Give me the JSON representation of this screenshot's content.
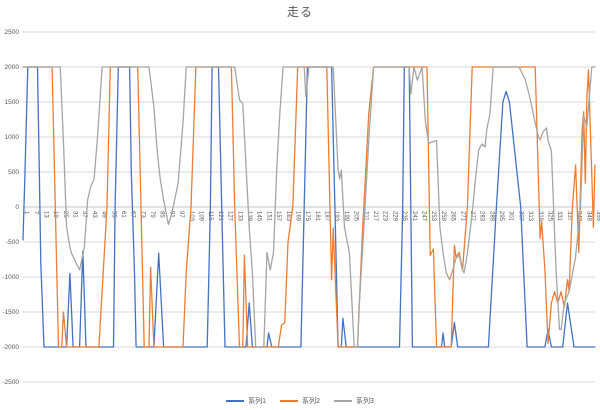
{
  "page": {
    "background": "#ffffff"
  },
  "chart_data": {
    "type": "line",
    "title": "走る",
    "grid": true,
    "legend_position": "bottom",
    "ylim": [
      -2500,
      2500
    ],
    "x_range": [
      1,
      355
    ],
    "y_ticks": [
      2500,
      2000,
      1500,
      1000,
      500,
      0,
      -500,
      -1000,
      -1500,
      -2000,
      -2500
    ],
    "x_tick_labels": [
      1,
      7,
      13,
      19,
      25,
      31,
      37,
      43,
      49,
      55,
      61,
      67,
      73,
      79,
      85,
      91,
      97,
      103,
      109,
      115,
      121,
      127,
      133,
      139,
      145,
      151,
      157,
      163,
      169,
      175,
      181,
      187,
      193,
      199,
      205,
      211,
      217,
      223,
      229,
      235,
      241,
      247,
      253,
      259,
      265,
      271,
      277,
      283,
      289,
      295,
      301,
      307,
      313,
      319,
      325,
      331,
      337,
      343,
      349,
      355
    ],
    "axis_text_color": "#595959",
    "gridline_color": "#d9d9d9",
    "zero_axis_color": "#c6c6c6",
    "series": [
      {
        "name": "系列1",
        "color": "#4472c4",
        "points": [
          [
            1,
            -470
          ],
          [
            2,
            300
          ],
          [
            4,
            2000
          ],
          [
            10,
            2000
          ],
          [
            11,
            600
          ],
          [
            12,
            -800
          ],
          [
            14,
            -2000
          ],
          [
            28,
            -2000
          ],
          [
            30,
            -950
          ],
          [
            32,
            -2000
          ],
          [
            36,
            -2000
          ],
          [
            38,
            -630
          ],
          [
            40,
            -2000
          ],
          [
            57,
            -2000
          ],
          [
            58,
            0
          ],
          [
            60,
            2000
          ],
          [
            67,
            2000
          ],
          [
            68,
            500
          ],
          [
            70,
            -950
          ],
          [
            71,
            -2000
          ],
          [
            82,
            -2000
          ],
          [
            85,
            -660
          ],
          [
            88,
            -2000
          ],
          [
            115,
            -2000
          ],
          [
            117,
            0
          ],
          [
            118,
            2000
          ],
          [
            122,
            2000
          ],
          [
            124,
            0
          ],
          [
            126,
            -2000
          ],
          [
            139,
            -2000
          ],
          [
            141,
            -1370
          ],
          [
            143,
            -2000
          ],
          [
            152,
            -2000
          ],
          [
            153,
            -1800
          ],
          [
            155,
            -2000
          ],
          [
            173,
            -2000
          ],
          [
            175,
            0
          ],
          [
            177,
            2000
          ],
          [
            192,
            2000
          ],
          [
            194,
            0
          ],
          [
            196,
            -2000
          ],
          [
            198,
            -2000
          ],
          [
            199,
            -1590
          ],
          [
            201,
            -2000
          ],
          [
            234,
            -2000
          ],
          [
            236,
            0
          ],
          [
            237,
            2000
          ],
          [
            240,
            2000
          ],
          [
            241,
            0
          ],
          [
            242,
            -2000
          ],
          [
            260,
            -2000
          ],
          [
            261,
            -1800
          ],
          [
            262,
            -2000
          ],
          [
            266,
            -2000
          ],
          [
            268,
            -1650
          ],
          [
            270,
            -2000
          ],
          [
            289,
            -2000
          ],
          [
            294,
            0
          ],
          [
            298,
            1500
          ],
          [
            300,
            1650
          ],
          [
            302,
            1500
          ],
          [
            309,
            0
          ],
          [
            313,
            -2000
          ],
          [
            324,
            -2000
          ],
          [
            326,
            -1750
          ],
          [
            328,
            -2000
          ],
          [
            335,
            -2000
          ],
          [
            338,
            -1370
          ],
          [
            342,
            -2000
          ],
          [
            355,
            -2000
          ]
        ]
      },
      {
        "name": "系列2",
        "color": "#ed7d31",
        "points": [
          [
            1,
            2000
          ],
          [
            19,
            2000
          ],
          [
            21,
            0
          ],
          [
            23,
            -2000
          ],
          [
            25,
            -2000
          ],
          [
            26,
            -1500
          ],
          [
            28,
            -2000
          ],
          [
            48,
            -2000
          ],
          [
            53,
            0
          ],
          [
            55,
            2000
          ],
          [
            72,
            2000
          ],
          [
            74,
            0
          ],
          [
            76,
            -2000
          ],
          [
            79,
            -2000
          ],
          [
            80,
            -860
          ],
          [
            82,
            -2000
          ],
          [
            100,
            -2000
          ],
          [
            102,
            -940
          ],
          [
            105,
            0
          ],
          [
            108,
            2000
          ],
          [
            130,
            2000
          ],
          [
            132,
            0
          ],
          [
            135,
            -2000
          ],
          [
            137,
            -2000
          ],
          [
            138,
            -690
          ],
          [
            140,
            -2000
          ],
          [
            159,
            -2000
          ],
          [
            161,
            -1690
          ],
          [
            163,
            -1650
          ],
          [
            165,
            -500
          ],
          [
            168,
            0
          ],
          [
            171,
            2000
          ],
          [
            189,
            2000
          ],
          [
            192,
            -1040
          ],
          [
            193,
            -300
          ],
          [
            196,
            -2000
          ],
          [
            208,
            -2000
          ],
          [
            211,
            -400
          ],
          [
            215,
            1340
          ],
          [
            218,
            2000
          ],
          [
            251,
            2000
          ],
          [
            253,
            -690
          ],
          [
            255,
            -600
          ],
          [
            257,
            -2000
          ],
          [
            266,
            -2000
          ],
          [
            268,
            -550
          ],
          [
            269,
            -714
          ],
          [
            271,
            -650
          ],
          [
            273,
            -900
          ],
          [
            276,
            0
          ],
          [
            279,
            2000
          ],
          [
            318,
            2000
          ],
          [
            321,
            -450
          ],
          [
            322,
            -210
          ],
          [
            324,
            -900
          ],
          [
            326,
            -1950
          ],
          [
            328,
            -1370
          ],
          [
            330,
            -1210
          ],
          [
            332,
            -1370
          ],
          [
            334,
            -1210
          ],
          [
            336,
            -1430
          ],
          [
            338,
            -1040
          ],
          [
            339,
            -1200
          ],
          [
            341,
            0
          ],
          [
            343,
            600
          ],
          [
            345,
            -650
          ],
          [
            347,
            1100
          ],
          [
            348,
            1360
          ],
          [
            349,
            340
          ],
          [
            350,
            1570
          ],
          [
            351,
            1960
          ],
          [
            354,
            -290
          ],
          [
            355,
            600
          ]
        ]
      },
      {
        "name": "系列3",
        "color": "#a5a5a5",
        "points": [
          [
            1,
            2000
          ],
          [
            24,
            2000
          ],
          [
            26,
            950
          ],
          [
            28,
            -290
          ],
          [
            30,
            -570
          ],
          [
            31,
            -660
          ],
          [
            33,
            -760
          ],
          [
            36,
            -900
          ],
          [
            39,
            -570
          ],
          [
            41,
            100
          ],
          [
            43,
            300
          ],
          [
            45,
            400
          ],
          [
            47,
            960
          ],
          [
            50,
            2000
          ],
          [
            79,
            2000
          ],
          [
            82,
            1430
          ],
          [
            84,
            815
          ],
          [
            86,
            390
          ],
          [
            88,
            100
          ],
          [
            91,
            -250
          ],
          [
            93,
            -100
          ],
          [
            97,
            340
          ],
          [
            100,
            1200
          ],
          [
            102,
            2000
          ],
          [
            132,
            2000
          ],
          [
            135,
            1530
          ],
          [
            137,
            1480
          ],
          [
            141,
            -290
          ],
          [
            143,
            -940
          ],
          [
            145,
            -2000
          ],
          [
            150,
            -2000
          ],
          [
            152,
            -650
          ],
          [
            154,
            -900
          ],
          [
            156,
            -650
          ],
          [
            158,
            530
          ],
          [
            160,
            1360
          ],
          [
            162,
            2000
          ],
          [
            175,
            2000
          ],
          [
            176,
            1580
          ],
          [
            178,
            2000
          ],
          [
            193,
            2000
          ],
          [
            196,
            530
          ],
          [
            197,
            400
          ],
          [
            198,
            530
          ],
          [
            200,
            -290
          ],
          [
            203,
            -660
          ],
          [
            206,
            -2000
          ],
          [
            208,
            -2000
          ],
          [
            209,
            -1430
          ],
          [
            212,
            -290
          ],
          [
            215,
            960
          ],
          [
            218,
            2000
          ],
          [
            240,
            2000
          ],
          [
            241,
            1610
          ],
          [
            243,
            2000
          ],
          [
            245,
            1810
          ],
          [
            248,
            2000
          ],
          [
            250,
            1240
          ],
          [
            252,
            910
          ],
          [
            257,
            950
          ],
          [
            259,
            -290
          ],
          [
            261,
            -660
          ],
          [
            263,
            -940
          ],
          [
            265,
            -1040
          ],
          [
            267,
            -900
          ],
          [
            269,
            -730
          ],
          [
            271,
            -690
          ],
          [
            273,
            -900
          ],
          [
            274,
            -940
          ],
          [
            276,
            -660
          ],
          [
            279,
            -90
          ],
          [
            281,
            390
          ],
          [
            283,
            815
          ],
          [
            285,
            900
          ],
          [
            287,
            860
          ],
          [
            288,
            1100
          ],
          [
            290,
            1340
          ],
          [
            292,
            2000
          ],
          [
            308,
            2000
          ],
          [
            312,
            1810
          ],
          [
            315,
            1530
          ],
          [
            318,
            1200
          ],
          [
            320,
            1000
          ],
          [
            321,
            960
          ],
          [
            323,
            1080
          ],
          [
            325,
            1130
          ],
          [
            326,
            950
          ],
          [
            328,
            800
          ],
          [
            331,
            -950
          ],
          [
            333,
            -1750
          ],
          [
            334,
            -1750
          ],
          [
            336,
            -1370
          ],
          [
            339,
            -1210
          ],
          [
            343,
            -710
          ],
          [
            346,
            0
          ],
          [
            348,
            1300
          ],
          [
            350,
            1150
          ],
          [
            353,
            2000
          ],
          [
            355,
            2000
          ]
        ]
      }
    ]
  }
}
